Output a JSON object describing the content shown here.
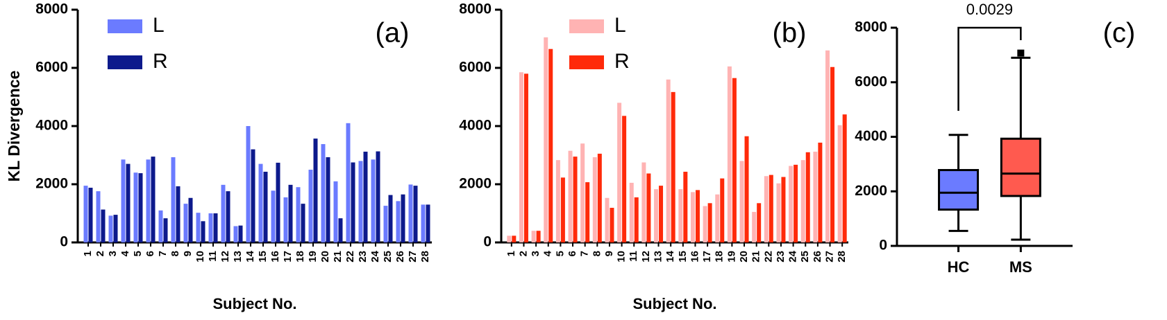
{
  "chart_data": [
    {
      "type": "bar",
      "panel_label": "(a)",
      "x_label": "Subject No.",
      "y_label": "KL Divergence",
      "categories": [
        "1",
        "2",
        "3",
        "4",
        "5",
        "6",
        "7",
        "8",
        "9",
        "10",
        "11",
        "12",
        "13",
        "14",
        "15",
        "16",
        "17",
        "18",
        "19",
        "20",
        "21",
        "22",
        "23",
        "24",
        "25",
        "26",
        "27",
        "28"
      ],
      "series": [
        {
          "name": "L",
          "color": "#6b7bff",
          "values": [
            1950,
            1760,
            920,
            2850,
            2400,
            2850,
            1100,
            2930,
            1330,
            1020,
            1000,
            1980,
            560,
            4000,
            2700,
            1780,
            1550,
            1900,
            2500,
            3380,
            2100,
            4100,
            2800,
            2850,
            1260,
            1420,
            1990,
            1300
          ]
        },
        {
          "name": "R",
          "color": "#0d1a8c",
          "values": [
            1880,
            1130,
            950,
            2700,
            2380,
            2950,
            830,
            1930,
            1530,
            730,
            1000,
            1760,
            580,
            3200,
            2430,
            2740,
            1980,
            1330,
            3570,
            2930,
            830,
            2750,
            3120,
            3130,
            1630,
            1650,
            1950,
            1300
          ]
        }
      ],
      "ylim": [
        0,
        8000
      ],
      "yticks": [
        0,
        2000,
        4000,
        6000,
        8000
      ]
    },
    {
      "type": "bar",
      "panel_label": "(b)",
      "x_label": "Subject No.",
      "categories": [
        "1",
        "2",
        "3",
        "4",
        "5",
        "6",
        "7",
        "8",
        "9",
        "10",
        "11",
        "12",
        "13",
        "14",
        "15",
        "16",
        "17",
        "18",
        "19",
        "20",
        "21",
        "22",
        "23",
        "24",
        "25",
        "26",
        "27",
        "28"
      ],
      "series": [
        {
          "name": "L",
          "color": "#ffb3b3",
          "values": [
            230,
            5850,
            400,
            7050,
            2830,
            3150,
            3400,
            2930,
            1530,
            4800,
            2050,
            2750,
            1830,
            5600,
            1830,
            1730,
            1250,
            1650,
            6050,
            2800,
            1050,
            2280,
            2030,
            2630,
            2830,
            3120,
            6600,
            4030
          ]
        },
        {
          "name": "R",
          "color": "#ff2a0a",
          "values": [
            230,
            5800,
            400,
            6650,
            2230,
            2950,
            2070,
            3050,
            1190,
            4350,
            1550,
            2370,
            1950,
            5170,
            2430,
            1800,
            1350,
            2200,
            5650,
            3650,
            1350,
            2320,
            2250,
            2670,
            3100,
            3430,
            6030,
            4400
          ]
        }
      ],
      "ylim": [
        0,
        8000
      ],
      "yticks": [
        0,
        2000,
        4000,
        6000,
        8000
      ]
    },
    {
      "type": "box",
      "panel_label": "(c)",
      "annotation": "0.0029",
      "categories": [
        "HC",
        "MS"
      ],
      "colors": [
        "#6b7bff",
        "#ff5a4f"
      ],
      "whisker_low": [
        550,
        230
      ],
      "q1": [
        1330,
        1830
      ],
      "median": [
        1950,
        2650
      ],
      "q3": [
        2780,
        3930
      ],
      "whisker_high": [
        4070,
        6900
      ],
      "outliers": [
        [],
        [
          7070
        ]
      ],
      "ylim": [
        0,
        8000
      ],
      "yticks": [
        0,
        2000,
        4000,
        6000,
        8000
      ]
    }
  ]
}
